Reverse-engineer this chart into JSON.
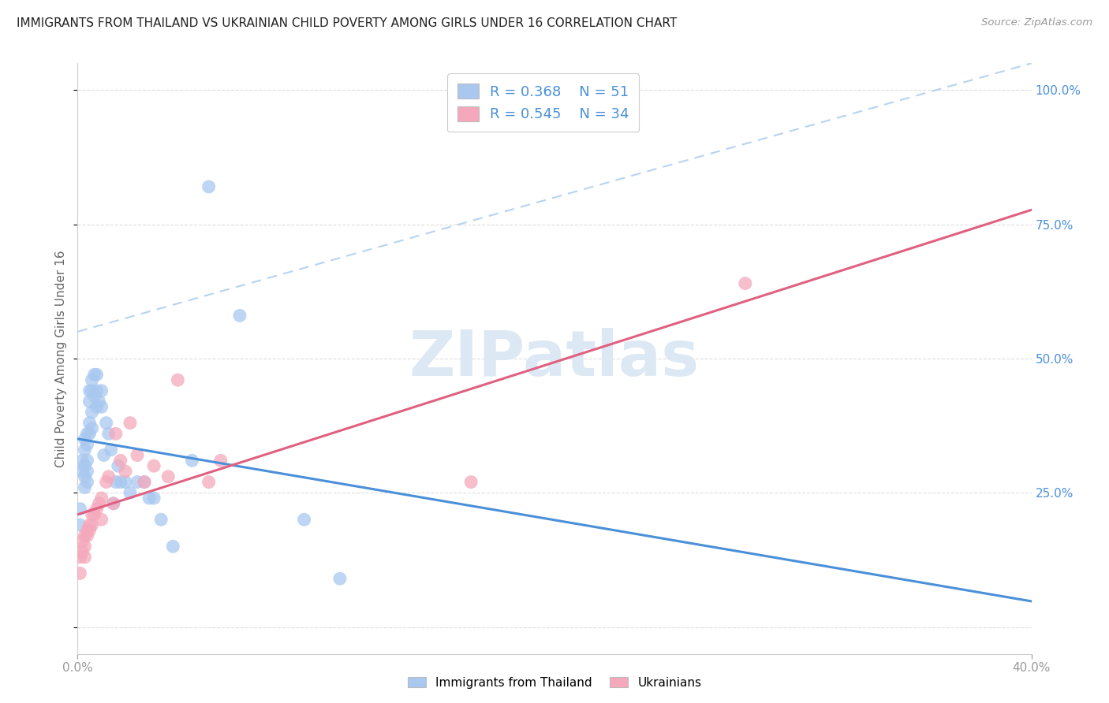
{
  "title": "IMMIGRANTS FROM THAILAND VS UKRAINIAN CHILD POVERTY AMONG GIRLS UNDER 16 CORRELATION CHART",
  "source": "Source: ZipAtlas.com",
  "ylabel": "Child Poverty Among Girls Under 16",
  "y_tick_labels": [
    "",
    "25.0%",
    "50.0%",
    "75.0%",
    "100.0%"
  ],
  "y_ticks": [
    0.0,
    0.25,
    0.5,
    0.75,
    1.0
  ],
  "x_lim": [
    0.0,
    0.4
  ],
  "y_lim": [
    -0.05,
    1.05
  ],
  "legend_label1": "Immigrants from Thailand",
  "legend_label2": "Ukrainians",
  "R1": "0.368",
  "N1": "51",
  "R2": "0.545",
  "N2": "34",
  "color_blue": "#A8C8F0",
  "color_pink": "#F5A8BC",
  "color_blue_line": "#4A90D9",
  "color_pink_line": "#E06080",
  "color_blue_text": "#4A90D9",
  "watermark_color": "#DCE9F5",
  "thai_x": [
    0.001,
    0.001,
    0.002,
    0.002,
    0.003,
    0.003,
    0.003,
    0.003,
    0.003,
    0.004,
    0.004,
    0.004,
    0.004,
    0.004,
    0.005,
    0.005,
    0.005,
    0.005,
    0.006,
    0.006,
    0.006,
    0.006,
    0.007,
    0.007,
    0.008,
    0.008,
    0.008,
    0.009,
    0.01,
    0.01,
    0.011,
    0.012,
    0.013,
    0.014,
    0.015,
    0.016,
    0.017,
    0.018,
    0.02,
    0.022,
    0.025,
    0.028,
    0.03,
    0.032,
    0.035,
    0.04,
    0.048,
    0.055,
    0.068,
    0.095,
    0.11
  ],
  "thai_y": [
    0.22,
    0.19,
    0.31,
    0.29,
    0.35,
    0.33,
    0.3,
    0.28,
    0.26,
    0.36,
    0.34,
    0.31,
    0.29,
    0.27,
    0.44,
    0.42,
    0.38,
    0.36,
    0.46,
    0.44,
    0.4,
    0.37,
    0.47,
    0.43,
    0.47,
    0.44,
    0.41,
    0.42,
    0.44,
    0.41,
    0.32,
    0.38,
    0.36,
    0.33,
    0.23,
    0.27,
    0.3,
    0.27,
    0.27,
    0.25,
    0.27,
    0.27,
    0.24,
    0.24,
    0.2,
    0.15,
    0.31,
    0.82,
    0.58,
    0.2,
    0.09
  ],
  "ukr_x": [
    0.001,
    0.001,
    0.002,
    0.002,
    0.003,
    0.003,
    0.003,
    0.004,
    0.004,
    0.005,
    0.005,
    0.006,
    0.006,
    0.007,
    0.008,
    0.009,
    0.01,
    0.01,
    0.012,
    0.013,
    0.015,
    0.016,
    0.018,
    0.02,
    0.022,
    0.025,
    0.028,
    0.032,
    0.038,
    0.042,
    0.055,
    0.06,
    0.28,
    0.165
  ],
  "ukr_y": [
    0.13,
    0.1,
    0.16,
    0.14,
    0.17,
    0.15,
    0.13,
    0.18,
    0.17,
    0.19,
    0.18,
    0.21,
    0.19,
    0.21,
    0.22,
    0.23,
    0.24,
    0.2,
    0.27,
    0.28,
    0.23,
    0.36,
    0.31,
    0.29,
    0.38,
    0.32,
    0.27,
    0.3,
    0.28,
    0.46,
    0.27,
    0.31,
    0.64,
    0.27
  ]
}
